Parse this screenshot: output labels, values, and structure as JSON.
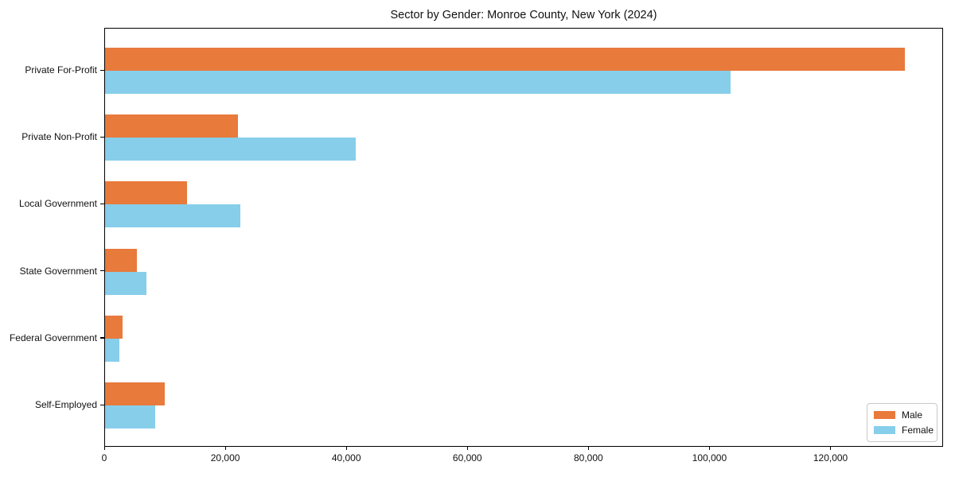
{
  "figure": {
    "title": "Sector by Gender: Monroe County, New York (2024)"
  },
  "chart_data": {
    "type": "bar",
    "orientation": "horizontal",
    "title": "Sector by Gender: Monroe County, New York (2024)",
    "categories": [
      "Private For-Profit",
      "Private Non-Profit",
      "Local Government",
      "State Government",
      "Federal Government",
      "Self-Employed"
    ],
    "series": [
      {
        "name": "Male",
        "color": "#E87A3C",
        "values": [
          132100,
          22000,
          13500,
          5200,
          2900,
          9900
        ]
      },
      {
        "name": "Female",
        "color": "#87CEEB",
        "values": [
          103300,
          41400,
          22300,
          6800,
          2300,
          8300
        ]
      }
    ],
    "xlabel": "",
    "ylabel": "",
    "xlim": [
      0,
      138600
    ],
    "xticks": [
      0,
      20000,
      40000,
      60000,
      80000,
      100000,
      120000
    ],
    "xticklabels": [
      "0",
      "20,000",
      "40,000",
      "60,000",
      "80,000",
      "100,000",
      "120,000"
    ],
    "grid": false,
    "legend": {
      "position": "lower right",
      "labels": [
        "Male",
        "Female"
      ]
    }
  }
}
